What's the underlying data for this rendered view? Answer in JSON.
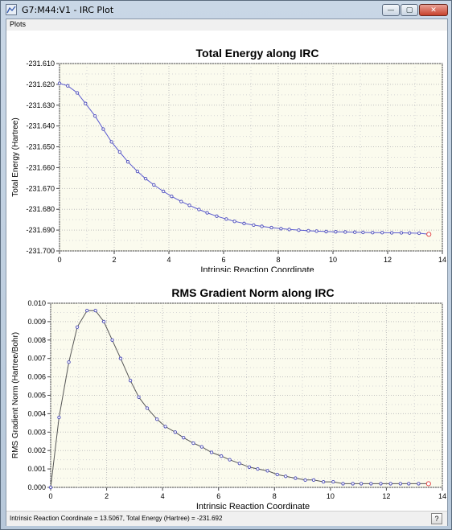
{
  "window": {
    "title": "G7:M44:V1 - IRC Plot",
    "minimize_label": "—",
    "maximize_label": "▢",
    "close_label": "✕"
  },
  "menu": {
    "plots": "Plots"
  },
  "status": {
    "text": "Intrinsic Reaction Coordinate = 13.5067, Total Energy (Hartree) = -231.692",
    "help_label": "?"
  },
  "colors": {
    "line": "#5b5bd0",
    "point": "#4a4ab8",
    "plot_bg": "#fbfbee",
    "last_point": "#e03a3a"
  },
  "chart_data": [
    {
      "type": "line",
      "title": "Total Energy along IRC",
      "xlabel": "Intrinsic Reaction Coordinate",
      "ylabel": "Total Energy (Hartree)",
      "xlim": [
        0,
        14
      ],
      "ylim": [
        -231.7,
        -231.61
      ],
      "xticks": [
        0,
        2,
        4,
        6,
        8,
        10,
        12,
        14
      ],
      "yticks": [
        -231.61,
        -231.62,
        -231.63,
        -231.64,
        -231.65,
        -231.66,
        -231.67,
        -231.68,
        -231.69,
        -231.7
      ],
      "ytick_labels": [
        "-231.610",
        "-231.620",
        "-231.630",
        "-231.640",
        "-231.650",
        "-231.660",
        "-231.670",
        "-231.680",
        "-231.690",
        "-231.700"
      ],
      "xtick_labels": [
        "0",
        "2",
        "4",
        "6",
        "8",
        "10",
        "12",
        "14"
      ],
      "grid": true,
      "x": [
        0,
        0.3,
        0.65,
        0.95,
        1.3,
        1.6,
        1.9,
        2.2,
        2.5,
        2.85,
        3.15,
        3.45,
        3.8,
        4.1,
        4.45,
        4.75,
        5.1,
        5.4,
        5.75,
        6.1,
        6.4,
        6.75,
        7.1,
        7.4,
        7.75,
        8.1,
        8.4,
        8.75,
        9.1,
        9.4,
        9.75,
        10.1,
        10.45,
        10.8,
        11.1,
        11.45,
        11.8,
        12.15,
        12.5,
        12.8,
        13.15,
        13.5067
      ],
      "y": [
        -231.6195,
        -231.6207,
        -231.6241,
        -231.6292,
        -231.6352,
        -231.6415,
        -231.6476,
        -231.6525,
        -231.6572,
        -231.6618,
        -231.6653,
        -231.6683,
        -231.6714,
        -231.6738,
        -231.6763,
        -231.6781,
        -231.6801,
        -231.6817,
        -231.6833,
        -231.6847,
        -231.6858,
        -231.6868,
        -231.6876,
        -231.6882,
        -231.6888,
        -231.6893,
        -231.6897,
        -231.69,
        -231.6903,
        -231.6905,
        -231.6907,
        -231.6908,
        -231.6909,
        -231.691,
        -231.6911,
        -231.6912,
        -231.6912,
        -231.6913,
        -231.6913,
        -231.6914,
        -231.6915,
        -231.692
      ]
    },
    {
      "type": "line",
      "title": "RMS Gradient Norm along IRC",
      "xlabel": "Intrinsic Reaction Coordinate",
      "ylabel": "RMS Gradient Norm (Hartree/Bohr)",
      "xlim": [
        0,
        14
      ],
      "ylim": [
        0,
        0.01
      ],
      "xticks": [
        0,
        2,
        4,
        6,
        8,
        10,
        12,
        14
      ],
      "yticks": [
        0,
        0.001,
        0.002,
        0.003,
        0.004,
        0.005,
        0.006,
        0.007,
        0.008,
        0.009,
        0.01
      ],
      "ytick_labels": [
        "0.000",
        "0.001",
        "0.002",
        "0.003",
        "0.004",
        "0.005",
        "0.006",
        "0.007",
        "0.008",
        "0.009",
        "0.010"
      ],
      "xtick_labels": [
        "0",
        "2",
        "4",
        "6",
        "8",
        "10",
        "12",
        "14"
      ],
      "grid": true,
      "x": [
        0,
        0.3,
        0.65,
        0.95,
        1.3,
        1.6,
        1.9,
        2.2,
        2.5,
        2.85,
        3.15,
        3.45,
        3.8,
        4.1,
        4.45,
        4.75,
        5.1,
        5.4,
        5.75,
        6.1,
        6.4,
        6.75,
        7.1,
        7.4,
        7.75,
        8.1,
        8.4,
        8.75,
        9.1,
        9.4,
        9.75,
        10.1,
        10.45,
        10.8,
        11.1,
        11.45,
        11.8,
        12.15,
        12.5,
        12.8,
        13.15,
        13.5067
      ],
      "y": [
        0.0,
        0.0038,
        0.0068,
        0.0087,
        0.0096,
        0.0096,
        0.009,
        0.008,
        0.007,
        0.0058,
        0.0049,
        0.0043,
        0.0037,
        0.0033,
        0.003,
        0.0027,
        0.0024,
        0.0022,
        0.0019,
        0.0017,
        0.0015,
        0.0013,
        0.0011,
        0.001,
        0.0009,
        0.0007,
        0.0006,
        0.0005,
        0.0004,
        0.0004,
        0.0003,
        0.0003,
        0.0002,
        0.0002,
        0.0002,
        0.0002,
        0.0002,
        0.0002,
        0.0002,
        0.0002,
        0.0002,
        0.0002
      ]
    }
  ]
}
